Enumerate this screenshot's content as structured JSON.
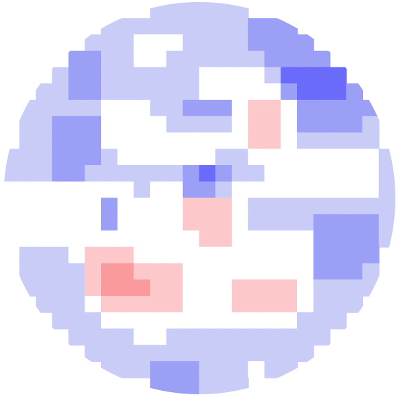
{
  "chart_data": {
    "type": "heatmap",
    "tick_labels": false,
    "zlim": [
      -3,
      3
    ],
    "cells": [
      [
        null,
        null,
        null,
        null,
        null,
        null,
        null,
        null,
        null,
        -1,
        -1,
        -1,
        -1,
        -1,
        -1,
        null,
        null,
        null,
        null,
        null,
        null,
        null,
        null,
        null
      ],
      [
        null,
        null,
        null,
        null,
        null,
        null,
        -1,
        -1,
        -1,
        -1,
        -1,
        -1,
        -1,
        -1,
        -1,
        -2,
        -2,
        -2,
        null,
        null,
        null,
        null,
        null,
        null
      ],
      [
        null,
        null,
        null,
        null,
        null,
        -1,
        -1,
        -1,
        0,
        0,
        0,
        -1,
        -1,
        -1,
        -1,
        -2,
        -2,
        -2,
        -2,
        null,
        null,
        null,
        null,
        null
      ],
      [
        null,
        null,
        null,
        null,
        -2,
        -2,
        -1,
        -1,
        0,
        0,
        -1,
        -1,
        -1,
        -1,
        -1,
        -1,
        -2,
        -2,
        -2,
        -2,
        null,
        null,
        null,
        null
      ],
      [
        null,
        null,
        null,
        -1,
        -2,
        -2,
        -1,
        -1,
        -1,
        -1,
        -1,
        -1,
        0,
        0,
        0,
        0,
        -1,
        -3,
        -3,
        -3,
        -3,
        null,
        null,
        null
      ],
      [
        null,
        null,
        -1,
        -1,
        -2,
        -2,
        -1,
        -1,
        -1,
        -1,
        -1,
        -1,
        0,
        0,
        0,
        0,
        0,
        -2,
        -3,
        -3,
        -3,
        -2,
        null,
        null
      ],
      [
        null,
        -1,
        -1,
        -1,
        -1,
        -1,
        0,
        0,
        0,
        -1,
        -1,
        -2,
        -2,
        -2,
        0,
        1,
        1,
        0,
        -2,
        -2,
        -2,
        -2,
        -2,
        null
      ],
      [
        null,
        -1,
        -1,
        -2,
        -2,
        -2,
        0,
        0,
        0,
        0,
        -1,
        -1,
        -1,
        -1,
        0,
        1,
        1,
        0,
        -2,
        -2,
        -2,
        -2,
        -1,
        null
      ],
      [
        null,
        -1,
        -1,
        -2,
        -2,
        -2,
        0,
        0,
        0,
        0,
        0,
        0,
        0,
        0,
        0,
        1,
        1,
        0,
        -1,
        -1,
        -1,
        -1,
        -1,
        null
      ],
      [
        -1,
        -1,
        -1,
        -2,
        -2,
        -2,
        -1,
        0,
        0,
        0,
        0,
        0,
        0,
        -1,
        -1,
        0,
        0,
        0,
        0,
        0,
        0,
        0,
        0,
        -1
      ],
      [
        -1,
        -1,
        -1,
        -2,
        -2,
        -1,
        -1,
        -1,
        -1,
        -1,
        -1,
        -2,
        -3,
        -2,
        -1,
        -1,
        0,
        0,
        0,
        0,
        0,
        0,
        0,
        -1
      ],
      [
        0,
        0,
        0,
        0,
        0,
        0,
        0,
        0,
        -1,
        0,
        0,
        -2,
        -2,
        -1,
        0,
        0,
        0,
        0,
        0,
        0,
        0,
        0,
        0,
        -1
      ],
      [
        0,
        0,
        0,
        0,
        0,
        0,
        -2,
        0,
        0,
        0,
        0,
        1,
        1,
        1,
        0,
        -1,
        -1,
        -1,
        -1,
        -1,
        -1,
        -1,
        -1,
        -1
      ],
      [
        0,
        0,
        0,
        0,
        0,
        0,
        -2,
        0,
        0,
        0,
        0,
        1,
        1,
        1,
        0,
        -1,
        -1,
        -1,
        -1,
        -2,
        -2,
        -2,
        -2,
        -1
      ],
      [
        0,
        0,
        0,
        0,
        0,
        0,
        0,
        0,
        0,
        0,
        0,
        0,
        1,
        1,
        0,
        0,
        0,
        0,
        0,
        -2,
        -2,
        -2,
        -2,
        -1
      ],
      [
        null,
        -1,
        -1,
        -1,
        0,
        1,
        1,
        1,
        0,
        0,
        0,
        0,
        0,
        0,
        0,
        0,
        0,
        0,
        0,
        -2,
        -2,
        -2,
        -2,
        null
      ],
      [
        null,
        -1,
        -1,
        -1,
        -1,
        1,
        2,
        2,
        1,
        1,
        1,
        0,
        0,
        0,
        0,
        0,
        0,
        0,
        0,
        -2,
        -2,
        -2,
        -1,
        null
      ],
      [
        null,
        -1,
        -1,
        -1,
        -1,
        1,
        2,
        2,
        2,
        1,
        1,
        0,
        0,
        0,
        1,
        1,
        1,
        1,
        0,
        -1,
        -1,
        -1,
        -1,
        null
      ],
      [
        null,
        null,
        -1,
        -1,
        -1,
        0,
        1,
        1,
        1,
        1,
        1,
        0,
        0,
        0,
        1,
        1,
        1,
        1,
        0,
        -1,
        -1,
        -1,
        null,
        null
      ],
      [
        null,
        null,
        null,
        -1,
        -1,
        -1,
        0,
        0,
        0,
        0,
        0,
        0,
        0,
        0,
        0,
        0,
        0,
        0,
        -1,
        -1,
        -1,
        null,
        null,
        null
      ],
      [
        null,
        null,
        null,
        null,
        -1,
        -1,
        -1,
        -1,
        0,
        0,
        -1,
        -1,
        -1,
        -1,
        -1,
        -1,
        -1,
        -1,
        -1,
        -1,
        null,
        null,
        null,
        null
      ],
      [
        null,
        null,
        null,
        null,
        null,
        -1,
        -1,
        -1,
        -1,
        -1,
        -1,
        -1,
        -1,
        -1,
        -1,
        -1,
        -1,
        -1,
        -1,
        null,
        null,
        null,
        null,
        null
      ],
      [
        null,
        null,
        null,
        null,
        null,
        null,
        -1,
        -1,
        -1,
        -2,
        -2,
        -2,
        -1,
        -1,
        -1,
        0,
        -1,
        -1,
        null,
        null,
        null,
        null,
        null,
        null
      ],
      [
        null,
        null,
        null,
        null,
        null,
        null,
        null,
        null,
        null,
        -2,
        -2,
        -2,
        -1,
        -1,
        -1,
        null,
        null,
        null,
        null,
        null,
        null,
        null,
        null,
        null
      ]
    ]
  }
}
